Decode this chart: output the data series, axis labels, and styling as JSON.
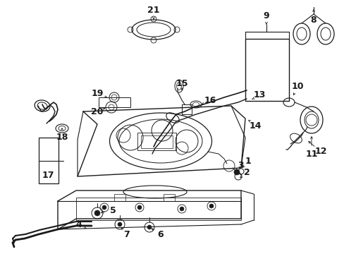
{
  "bg_color": "#ffffff",
  "line_color": "#1a1a1a",
  "figsize": [
    4.89,
    3.6
  ],
  "dpi": 100,
  "labels": [
    [
      1,
      0.638,
      0.548,
      0.618,
      0.558
    ],
    [
      2,
      0.622,
      0.568,
      0.605,
      0.572
    ],
    [
      3,
      0.608,
      0.548,
      0.59,
      0.548
    ],
    [
      4,
      0.118,
      0.818,
      0.13,
      0.84
    ],
    [
      5,
      0.22,
      0.79,
      0.24,
      0.8
    ],
    [
      6,
      0.328,
      0.862,
      0.318,
      0.842
    ],
    [
      7,
      0.258,
      0.848,
      0.252,
      0.832
    ],
    [
      8,
      0.888,
      0.105,
      0.888,
      0.128
    ],
    [
      9,
      0.688,
      0.13,
      0.688,
      0.158
    ],
    [
      10,
      0.728,
      0.285,
      0.715,
      0.27
    ],
    [
      11,
      0.888,
      0.435,
      0.878,
      0.415
    ],
    [
      12,
      0.758,
      0.455,
      0.748,
      0.44
    ],
    [
      13,
      0.555,
      0.355,
      0.548,
      0.375
    ],
    [
      14,
      0.548,
      0.488,
      0.545,
      0.47
    ],
    [
      15,
      0.435,
      0.348,
      0.448,
      0.372
    ],
    [
      16,
      0.488,
      0.408,
      0.475,
      0.412
    ],
    [
      17,
      0.098,
      0.595,
      0.098,
      0.595
    ],
    [
      18,
      0.128,
      0.502,
      0.128,
      0.502
    ],
    [
      19,
      0.215,
      0.362,
      0.238,
      0.378
    ],
    [
      20,
      0.215,
      0.388,
      0.238,
      0.392
    ],
    [
      21,
      0.312,
      0.088,
      0.312,
      0.112
    ]
  ]
}
